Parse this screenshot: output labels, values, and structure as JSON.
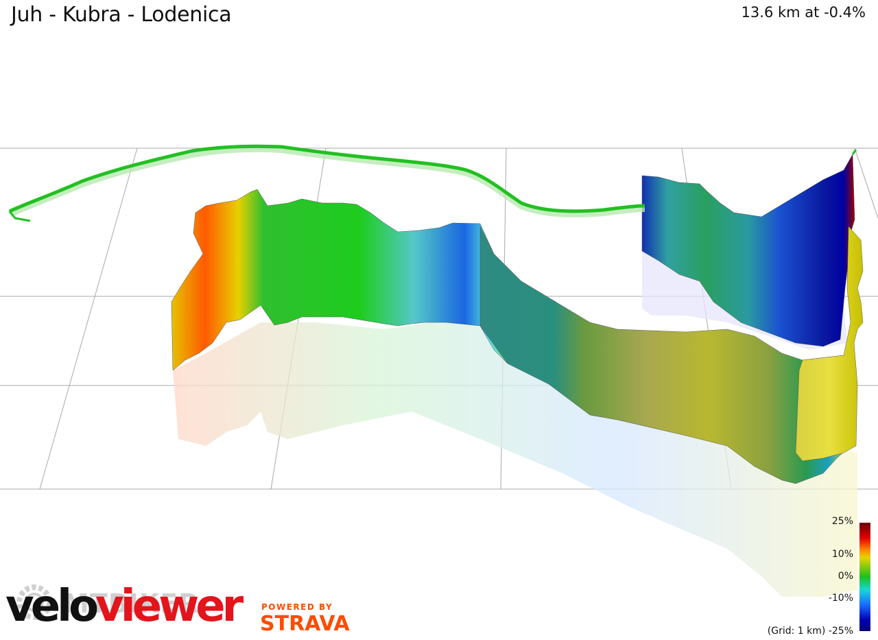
{
  "title": "Juh - Kubra - Lodenica",
  "summary": "13.6 km at -0.4%",
  "legend": {
    "labels": [
      "25%",
      "10%",
      "0%",
      "-10%",
      "-25%"
    ],
    "grid_note": "(Grid: 1 km)"
  },
  "branding": {
    "velo_1": "velo",
    "velo_2": "viewer",
    "powered_by": "POWERED BY",
    "strava": "STRAVA",
    "watermark": "MTBIKER"
  },
  "colors": {
    "steep_up": "#8b0000",
    "up": "#ff4500",
    "mild_up": "#d4c400",
    "flat": "#1db81d",
    "mild_down": "#20c4c4",
    "down": "#1040e0",
    "steep_down": "#00008b"
  }
}
